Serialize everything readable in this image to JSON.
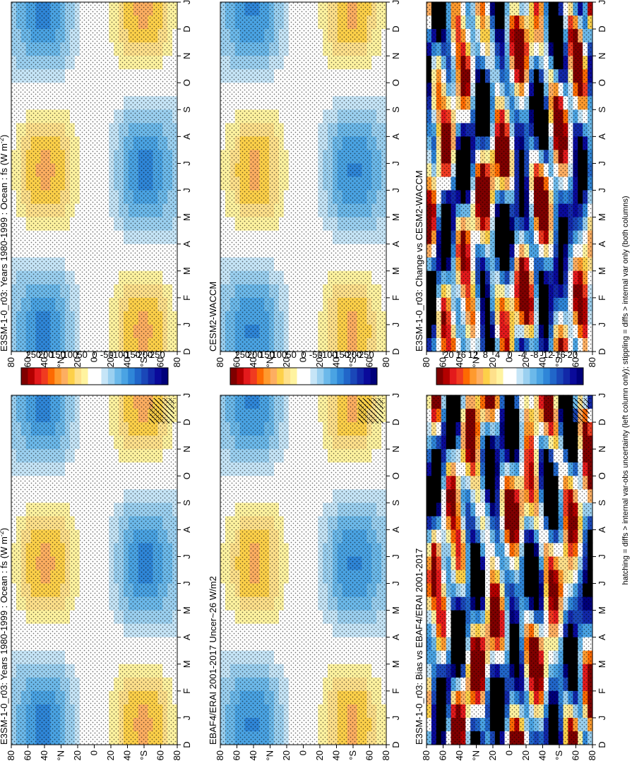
{
  "figure": {
    "orientation": "rotated-90-counterclockwise",
    "footnote": "hatching = diffs > internal var-obs uncertainty (left column only); stippling = diffs > internal var only (both columns)"
  },
  "chart_data": [
    {
      "type": "heatmap",
      "id": "model-bottom-left",
      "title": "E3SM-1-0_r03: Years 1980-1999 : Ocean : fs (W m",
      "title_unit_exponent": "-2",
      "title_close": ")",
      "x_ticks": [
        "D",
        "J",
        "F",
        "M",
        "A",
        "M",
        "J",
        "J",
        "A",
        "S",
        "O",
        "N",
        "D",
        "J"
      ],
      "y_ticks": [
        "80",
        "60",
        "40",
        "°N",
        "20",
        "0",
        "20",
        "40",
        "°S",
        "60",
        "80"
      ],
      "colorbar": {
        "ticks": [
          "250",
          "200",
          "150",
          "100",
          "50",
          "0",
          "-50",
          "-100",
          "-150",
          "-200",
          "-250"
        ],
        "range": [
          -275,
          275
        ]
      },
      "hatching": true,
      "stippling": true
    },
    {
      "type": "heatmap",
      "id": "obs-bottom-middle",
      "title": "EBAF4/ERAI 2001-2017 Uncer~26 W/m2",
      "x_ticks": [
        "D",
        "J",
        "F",
        "M",
        "A",
        "M",
        "J",
        "J",
        "A",
        "S",
        "O",
        "N",
        "D",
        "J"
      ],
      "y_ticks": [
        "80",
        "60",
        "40",
        "°N",
        "20",
        "0",
        "20",
        "40",
        "°S",
        "60",
        "80"
      ],
      "colorbar": {
        "ticks": [
          "250",
          "200",
          "150",
          "100",
          "50",
          "0",
          "-50",
          "-100",
          "-150",
          "-200",
          "-250"
        ],
        "range": [
          -275,
          275
        ]
      },
      "hatching": true,
      "stippling": true
    },
    {
      "type": "heatmap",
      "id": "bias-bottom-right",
      "title": "E3SM-1-0_r03: Bias vs EBAF4/ERAI 2001-2017",
      "x_ticks": [
        "D",
        "J",
        "F",
        "M",
        "A",
        "M",
        "J",
        "J",
        "A",
        "S",
        "O",
        "N",
        "D",
        "J"
      ],
      "y_ticks": [
        "80",
        "60",
        "40",
        "°N",
        "20",
        "0",
        "20",
        "40",
        "°S",
        "60",
        "80"
      ],
      "colorbar": {
        "ticks": [
          "20",
          "16",
          "12",
          "8",
          "4",
          "0",
          "-4",
          "-8",
          "-12",
          "-16",
          "-20"
        ],
        "range": [
          -22,
          22
        ]
      },
      "hatching": true,
      "stippling": true
    },
    {
      "type": "heatmap",
      "id": "model-top-left",
      "title": "E3SM-1-0_r03: Years 1980-1999 : Ocean : fs (W m",
      "title_unit_exponent": "-2",
      "title_close": ")",
      "x_ticks": [
        "D",
        "J",
        "F",
        "M",
        "A",
        "M",
        "J",
        "J",
        "A",
        "S",
        "O",
        "N",
        "D",
        "J"
      ],
      "y_ticks": [
        "80",
        "60",
        "40",
        "°N",
        "20",
        "0",
        "20",
        "40",
        "°S",
        "60",
        "80"
      ],
      "colorbar": {
        "ticks": [
          "250",
          "200",
          "150",
          "100",
          "50",
          "0",
          "-50",
          "-100",
          "-150",
          "-200",
          "-250"
        ],
        "range": [
          -275,
          275
        ]
      },
      "hatching": false,
      "stippling": true
    },
    {
      "type": "heatmap",
      "id": "cesm-top-middle",
      "title": "CESM2-WACCM",
      "x_ticks": [
        "D",
        "J",
        "F",
        "M",
        "A",
        "M",
        "J",
        "J",
        "A",
        "S",
        "O",
        "N",
        "D",
        "J"
      ],
      "y_ticks": [
        "80",
        "60",
        "40",
        "°N",
        "20",
        "0",
        "20",
        "40",
        "°S",
        "60",
        "80"
      ],
      "colorbar": {
        "ticks": [
          "250",
          "200",
          "150",
          "100",
          "50",
          "0",
          "-50",
          "-100",
          "-150",
          "-200",
          "-250"
        ],
        "range": [
          -275,
          275
        ]
      },
      "hatching": false,
      "stippling": true
    },
    {
      "type": "heatmap",
      "id": "change-top-right",
      "title": "E3SM-1-0_r03: Change vs CESM2-WACCM",
      "x_ticks": [
        "D",
        "J",
        "F",
        "M",
        "A",
        "M",
        "J",
        "J",
        "A",
        "S",
        "O",
        "N",
        "D",
        "J"
      ],
      "y_ticks": [
        "80",
        "60",
        "40",
        "°N",
        "20",
        "0",
        "20",
        "40",
        "°S",
        "60",
        "80"
      ],
      "colorbar": {
        "ticks": [
          "20",
          "16",
          "12",
          "8",
          "4",
          "0",
          "-4",
          "-8",
          "-12",
          "-16",
          "-20"
        ],
        "range": [
          -22,
          22
        ]
      },
      "hatching": false,
      "stippling": true
    }
  ]
}
